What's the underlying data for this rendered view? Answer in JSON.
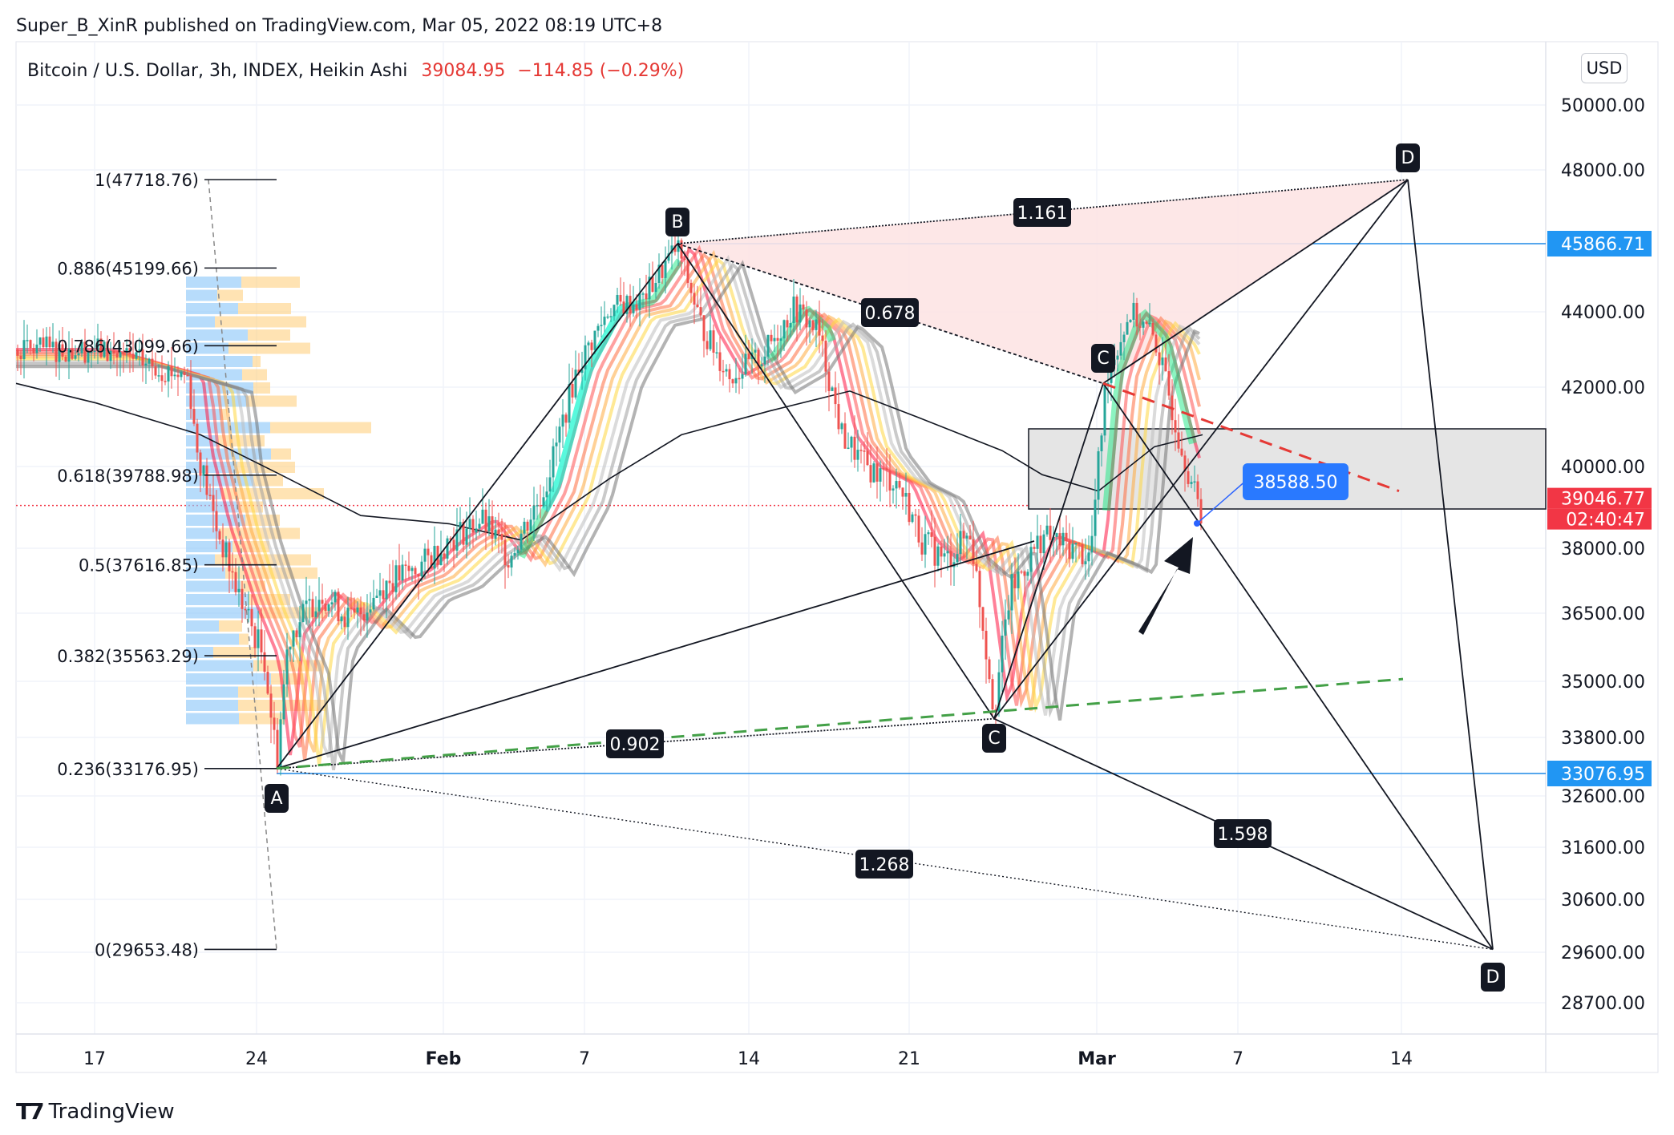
{
  "header": {
    "published": "Super_B_XinR published on TradingView.com, Mar 05, 2022 08:19 UTC+8",
    "symbol": "Bitcoin / U.S. Dollar, 3h, INDEX, Heikin Ashi",
    "price": "39084.95",
    "change": "−114.85 (−0.29%)"
  },
  "currency_button": "USD",
  "logo_text": "TradingView",
  "colors": {
    "up": "#26a69a",
    "down": "#ef5350",
    "blue": "#2962ff",
    "blue_line": "#1e88e5",
    "red_label": "#f23645",
    "black": "#131722",
    "pattern_fill": "#fde4e4",
    "box_fill": "#e5e5e5"
  },
  "chart_data": {
    "type": "line",
    "y_axis": {
      "ticks": [
        "50000.00",
        "48000.00",
        "44000.00",
        "42000.00",
        "40000.00",
        "38000.00",
        "36500.00",
        "35000.00",
        "33800.00",
        "32600.00",
        "31600.00",
        "30600.00",
        "29600.00",
        "28700.00"
      ],
      "tick_values": [
        50000,
        48000,
        44000,
        42000,
        40000,
        38000,
        36500,
        35000,
        33800,
        32600,
        31600,
        30600,
        29600,
        28700
      ]
    },
    "x_axis": {
      "labels": [
        "17",
        "24",
        "Feb",
        "7",
        "14",
        "21",
        "Mar",
        "7",
        "14"
      ]
    },
    "price_labels": [
      {
        "text": "45866.71",
        "value": 45866.71,
        "color": "#2196f3"
      },
      {
        "text": "33076.95",
        "value": 33076.95,
        "color": "#2196f3"
      },
      {
        "text": "39046.77",
        "value": 39046.77,
        "color": "#f23645"
      },
      {
        "text": "02:40:47",
        "value": 39046.77,
        "color": "#f23645"
      }
    ],
    "fib_levels": [
      {
        "label": "1(47718.76)",
        "value": 47718.76
      },
      {
        "label": "0.886(45199.66)",
        "value": 45199.66
      },
      {
        "label": "0.786(43099.66)",
        "value": 43099.66
      },
      {
        "label": "0.618(39788.98)",
        "value": 39788.98
      },
      {
        "label": "0.5(37616.85)",
        "value": 37616.85
      },
      {
        "label": "0.382(35563.29)",
        "value": 35563.29
      },
      {
        "label": "0.236(33176.95)",
        "value": 33176.95
      },
      {
        "label": "0(29653.48)",
        "value": 29653.48
      }
    ],
    "pattern_points": [
      {
        "label": "A",
        "value": 33176.95
      },
      {
        "label": "B",
        "value": 45866.71
      },
      {
        "label": "C",
        "value": 34200
      },
      {
        "label": "C",
        "value": 42100
      },
      {
        "label": "D",
        "value": 47718.76
      },
      {
        "label": "D",
        "value": 29653.48
      }
    ],
    "ratio_labels": [
      "1.161",
      "0.678",
      "0.902",
      "1.598",
      "1.268"
    ],
    "callout_price": "38588.50"
  }
}
